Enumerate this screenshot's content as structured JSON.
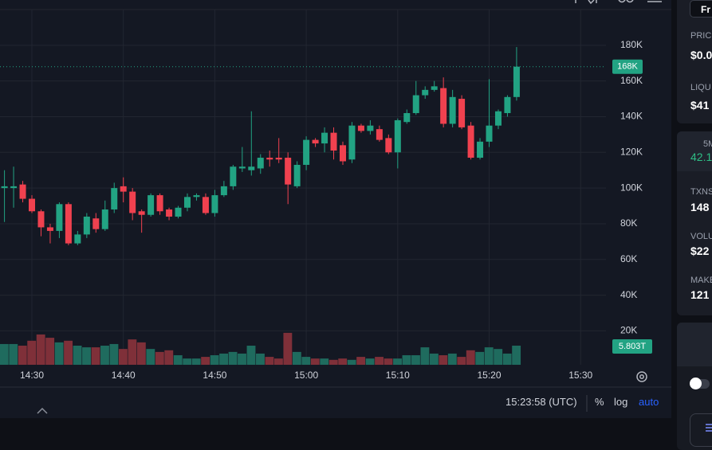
{
  "chart_data": {
    "type": "candlestick",
    "categories": [
      null,
      null,
      null,
      "14:30",
      null,
      null,
      null,
      null,
      null,
      null,
      null,
      null,
      null,
      "14:40",
      null,
      null,
      null,
      null,
      null,
      null,
      null,
      null,
      null,
      "14:50",
      null,
      null,
      null,
      null,
      null,
      null,
      null,
      null,
      null,
      "15:00",
      null,
      null,
      null,
      null,
      null,
      null,
      null,
      null,
      null,
      "15:10",
      null,
      null,
      null,
      null,
      null,
      null,
      null,
      null,
      null,
      "15:20",
      null,
      null,
      null,
      null,
      null,
      null,
      null,
      null,
      null,
      "15:30"
    ],
    "open": [
      100000,
      100000,
      102000,
      94000,
      87000,
      78000,
      76000,
      91000,
      69000,
      74000,
      83000,
      77000,
      88000,
      101000,
      98000,
      87000,
      85000,
      96000,
      88000,
      84000,
      89000,
      95000,
      95000,
      86000,
      96000,
      101000,
      111000,
      110000,
      111000,
      117000,
      117000,
      117000,
      101000,
      113000,
      127000,
      125000,
      131000,
      124000,
      116000,
      135000,
      132000,
      133000,
      128000,
      120000,
      137000,
      142000,
      152000,
      155000,
      156000,
      136000,
      150000,
      135000,
      117000,
      126000,
      135000,
      142000,
      151000,
      null,
      null,
      null,
      null,
      null,
      null,
      null
    ],
    "high": [
      110000,
      112000,
      104000,
      96000,
      88000,
      80000,
      92000,
      92000,
      76000,
      86000,
      86000,
      93000,
      103000,
      106000,
      100000,
      88000,
      97000,
      97000,
      89000,
      90000,
      97000,
      97000,
      97000,
      99000,
      104000,
      113000,
      123000,
      143000,
      119000,
      121000,
      128000,
      120000,
      115000,
      129000,
      128000,
      134000,
      134000,
      126000,
      137000,
      136000,
      138000,
      135000,
      130000,
      139000,
      144000,
      160000,
      157000,
      160000,
      162000,
      155000,
      152000,
      137000,
      128000,
      161000,
      144000,
      152000,
      179000,
      null,
      null,
      null,
      null,
      null,
      null,
      null
    ],
    "low": [
      81000,
      89000,
      92000,
      86000,
      73000,
      69000,
      72000,
      68000,
      68000,
      72000,
      75000,
      76000,
      86000,
      92000,
      82000,
      75000,
      84000,
      85000,
      82000,
      83000,
      87000,
      93000,
      85000,
      84000,
      95000,
      99000,
      109000,
      107000,
      108000,
      112000,
      114000,
      91000,
      100000,
      110000,
      123000,
      120000,
      116000,
      113000,
      114000,
      131000,
      130000,
      126000,
      119000,
      111000,
      136000,
      141000,
      150000,
      154000,
      134000,
      134000,
      133000,
      116000,
      116000,
      123000,
      133000,
      140000,
      149000,
      null,
      null,
      null,
      null,
      null,
      null,
      null
    ],
    "close": [
      101000,
      101000,
      94000,
      87000,
      78000,
      76000,
      91000,
      69000,
      74000,
      84000,
      77000,
      88000,
      100000,
      98000,
      86000,
      85000,
      96000,
      87000,
      84000,
      89000,
      95000,
      96000,
      86000,
      96000,
      101000,
      112000,
      112000,
      112000,
      117000,
      116000,
      116000,
      102000,
      113000,
      127000,
      125000,
      131000,
      121000,
      115000,
      135000,
      132000,
      135000,
      127000,
      120000,
      138000,
      142000,
      152000,
      155000,
      157000,
      136000,
      151000,
      134000,
      117000,
      126000,
      135000,
      143000,
      151000,
      168000,
      null,
      null,
      null,
      null,
      null,
      null,
      null
    ],
    "volume": [
      6300000000000.0,
      6300000000000.0,
      5800000000000.0,
      7300000000000.0,
      9200000000000.0,
      8200000000000.0,
      6800000000000.0,
      7300000000000.0,
      5800000000000.0,
      5300000000000.0,
      5300000000000.0,
      5800000000000.0,
      6300000000000.0,
      4800000000000.0,
      7700000000000.0,
      6800000000000.0,
      4800000000000.0,
      3900000000000.0,
      4400000000000.0,
      2900000000000.0,
      1900000000000.0,
      1900000000000.0,
      2400000000000.0,
      2900000000000.0,
      3400000000000.0,
      3900000000000.0,
      3400000000000.0,
      5800000000000.0,
      3400000000000.0,
      2400000000000.0,
      1900000000000.0,
      9700000000000.0,
      3900000000000.0,
      2400000000000.0,
      1900000000000.0,
      1900000000000.0,
      1500000000000.0,
      1900000000000.0,
      1500000000000.0,
      2400000000000.0,
      1900000000000.0,
      2400000000000.0,
      1900000000000.0,
      1900000000000.0,
      2900000000000.0,
      2900000000000.0,
      5300000000000.0,
      3400000000000.0,
      2900000000000.0,
      3400000000000.0,
      2400000000000.0,
      4400000000000.0,
      3900000000000.0,
      5300000000000.0,
      4800000000000.0,
      3400000000000.0,
      5803000000000.0,
      null,
      null,
      null,
      null,
      null,
      null,
      null
    ],
    "last_price_label": "168K",
    "last_volume_label": "5.803T",
    "ylim": [
      1000,
      200000
    ],
    "yticks": [
      {
        "value": 20000,
        "label": "20K"
      },
      {
        "value": 40000,
        "label": "40K"
      },
      {
        "value": 60000,
        "label": "60K"
      },
      {
        "value": 80000,
        "label": "80K"
      },
      {
        "value": 100000,
        "label": "100K"
      },
      {
        "value": 120000,
        "label": "120K"
      },
      {
        "value": 140000,
        "label": "140K"
      },
      {
        "value": 160000,
        "label": "160K"
      },
      {
        "value": 180000,
        "label": "180K"
      }
    ],
    "up_color": "#22a383",
    "down_color": "#f0414f",
    "up_volume_color": "#1f6b5e",
    "down_volume_color": "#7f3039",
    "grid": true
  },
  "status_bar": {
    "time": "15:23:58 (UTC)",
    "percent": "%",
    "log": "log",
    "auto": "auto"
  },
  "side_panel": {
    "button": "Fr",
    "stats": [
      {
        "label": "PRIC",
        "value": "$0.0"
      },
      {
        "label": "LIQU",
        "value": "$41"
      }
    ],
    "period": {
      "label": "5M",
      "value": "42.1"
    },
    "details": [
      {
        "label": "TXNS",
        "value": "148"
      },
      {
        "label": "VOLU",
        "value": "$22"
      },
      {
        "label": "MAKE",
        "value": "121"
      }
    ]
  }
}
